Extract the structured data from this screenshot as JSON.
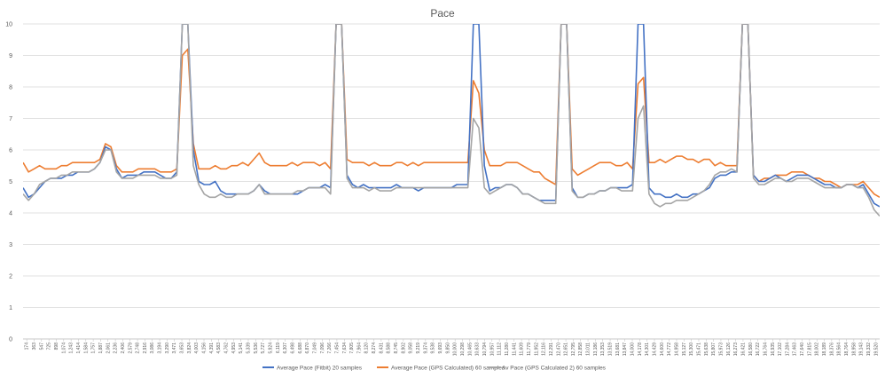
{
  "chart_data": {
    "type": "line",
    "title": "Pace",
    "xlabel": "",
    "ylabel": "",
    "ylim": [
      0,
      10
    ],
    "yticks": [
      "0",
      "1",
      "2",
      "3",
      "4",
      "5",
      "6",
      "7",
      "8",
      "9",
      "10"
    ],
    "grid": true,
    "legend_position": "bottom",
    "x_tick_labels": [
      "174",
      "363",
      "547",
      "725",
      "898",
      "1,074",
      "1,243",
      "1,414",
      "1,584",
      "1,757",
      "1,887",
      "2,061",
      "2,236",
      "2,406",
      "2,579",
      "2,748",
      "2,916",
      "3,086",
      "3,194",
      "3,290",
      "3,471",
      "3,653",
      "3,824",
      "4,003",
      "4,156",
      "4,391",
      "4,583",
      "4,762",
      "4,953",
      "5,141",
      "5,339",
      "5,536",
      "5,727",
      "5,924",
      "6,119",
      "6,307",
      "6,498",
      "6,688",
      "6,870",
      "7,049",
      "7,096",
      "7,266",
      "7,454",
      "7,634",
      "7,805",
      "7,964",
      "8,120",
      "8,274",
      "8,431",
      "8,588",
      "8,745",
      "8,902",
      "9,058",
      "9,219",
      "9,374",
      "9,538",
      "9,693",
      "9,850",
      "10,000",
      "10,298",
      "10,465",
      "10,633",
      "10,794",
      "10,957",
      "11,112",
      "11,280",
      "11,441",
      "11,609",
      "11,779",
      "11,952",
      "12,116",
      "12,291",
      "12,470",
      "12,651",
      "12,795",
      "12,858",
      "13,011",
      "13,186",
      "13,353",
      "13,519",
      "13,681",
      "13,847",
      "14,000",
      "14,178",
      "14,301",
      "14,429",
      "14,600",
      "14,772",
      "14,958",
      "15,127",
      "15,300",
      "15,471",
      "15,638",
      "15,807",
      "15,973",
      "16,126",
      "16,273",
      "16,421",
      "16,580",
      "16,722",
      "16,764",
      "16,935",
      "17,102",
      "17,284",
      "17,463",
      "17,640",
      "17,815",
      "18,002",
      "18,189",
      "18,376",
      "18,564",
      "18,764",
      "18,958",
      "19,143",
      "19,332",
      "19,520"
    ],
    "series": [
      {
        "name": "Average Pace (Fitbit) 20 samples",
        "color": "#4472C4",
        "values": [
          4.8,
          4.5,
          4.6,
          4.8,
          5.0,
          5.1,
          5.1,
          5.1,
          5.2,
          5.2,
          5.3,
          5.3,
          5.3,
          5.4,
          5.6,
          6.1,
          6.0,
          5.4,
          5.1,
          5.2,
          5.2,
          5.2,
          5.3,
          5.3,
          5.3,
          5.2,
          5.1,
          5.1,
          5.3,
          10.5,
          10.5,
          6.0,
          5.0,
          4.9,
          4.9,
          5.0,
          4.7,
          4.6,
          4.6,
          4.6,
          4.6,
          4.6,
          4.7,
          4.9,
          4.7,
          4.6,
          4.6,
          4.6,
          4.6,
          4.6,
          4.6,
          4.7,
          4.8,
          4.8,
          4.8,
          4.9,
          4.8,
          10.5,
          10.5,
          5.2,
          4.9,
          4.8,
          4.9,
          4.8,
          4.8,
          4.8,
          4.8,
          4.8,
          4.9,
          4.8,
          4.8,
          4.8,
          4.7,
          4.8,
          4.8,
          4.8,
          4.8,
          4.8,
          4.8,
          4.9,
          4.9,
          4.9,
          10.5,
          10.5,
          5.5,
          4.7,
          4.8,
          4.8,
          4.9,
          4.9,
          4.8,
          4.6,
          4.6,
          4.5,
          4.4,
          4.4,
          4.4,
          4.4,
          10.5,
          10.5,
          4.8,
          4.5,
          4.5,
          4.6,
          4.6,
          4.7,
          4.7,
          4.8,
          4.8,
          4.8,
          4.8,
          4.9,
          10.5,
          10.5,
          4.8,
          4.6,
          4.6,
          4.5,
          4.5,
          4.6,
          4.5,
          4.5,
          4.6,
          4.6,
          4.7,
          4.8,
          5.1,
          5.2,
          5.2,
          5.3,
          5.3,
          10.5,
          10.5,
          5.2,
          5.0,
          5.0,
          5.1,
          5.2,
          5.1,
          5.0,
          5.1,
          5.2,
          5.2,
          5.2,
          5.1,
          5.0,
          4.9,
          4.9,
          4.8,
          4.8,
          4.9,
          4.9,
          4.8,
          4.9,
          4.6,
          4.3,
          4.2
        ]
      },
      {
        "name": "Average Pace (GPS Calculated) 60 samples",
        "color": "#ED7D31",
        "values": [
          5.6,
          5.3,
          5.4,
          5.5,
          5.4,
          5.4,
          5.4,
          5.5,
          5.5,
          5.6,
          5.6,
          5.6,
          5.6,
          5.6,
          5.7,
          6.2,
          6.1,
          5.5,
          5.3,
          5.3,
          5.3,
          5.4,
          5.4,
          5.4,
          5.4,
          5.3,
          5.3,
          5.3,
          5.4,
          9.0,
          9.2,
          6.2,
          5.4,
          5.4,
          5.4,
          5.5,
          5.4,
          5.4,
          5.5,
          5.5,
          5.6,
          5.5,
          5.7,
          5.9,
          5.6,
          5.5,
          5.5,
          5.5,
          5.5,
          5.6,
          5.5,
          5.6,
          5.6,
          5.6,
          5.5,
          5.6,
          5.4,
          10.5,
          10.5,
          5.7,
          5.6,
          5.6,
          5.6,
          5.5,
          5.6,
          5.5,
          5.5,
          5.5,
          5.6,
          5.6,
          5.5,
          5.6,
          5.5,
          5.6,
          5.6,
          5.6,
          5.6,
          5.6,
          5.6,
          5.6,
          5.6,
          5.6,
          8.2,
          7.8,
          6.0,
          5.5,
          5.5,
          5.5,
          5.6,
          5.6,
          5.6,
          5.5,
          5.4,
          5.3,
          5.3,
          5.1,
          5.0,
          4.9,
          10.5,
          10.5,
          5.4,
          5.2,
          5.3,
          5.4,
          5.5,
          5.6,
          5.6,
          5.6,
          5.5,
          5.5,
          5.6,
          5.4,
          8.1,
          8.3,
          5.6,
          5.6,
          5.7,
          5.6,
          5.7,
          5.8,
          5.8,
          5.7,
          5.7,
          5.6,
          5.7,
          5.7,
          5.5,
          5.6,
          5.5,
          5.5,
          5.5,
          10.5,
          10.5,
          5.2,
          5.0,
          5.1,
          5.1,
          5.2,
          5.2,
          5.2,
          5.3,
          5.3,
          5.3,
          5.2,
          5.1,
          5.1,
          5.0,
          5.0,
          4.9,
          4.8,
          4.9,
          4.9,
          4.9,
          5.0,
          4.8,
          4.6,
          4.5
        ]
      },
      {
        "name": "Av Pace (GPS Calculated 2) 60 samples",
        "color": "#A5A5A5",
        "values": [
          4.6,
          4.4,
          4.6,
          4.9,
          5.0,
          5.1,
          5.1,
          5.2,
          5.2,
          5.3,
          5.3,
          5.3,
          5.3,
          5.4,
          5.6,
          6.0,
          6.0,
          5.3,
          5.1,
          5.1,
          5.1,
          5.2,
          5.2,
          5.2,
          5.2,
          5.1,
          5.1,
          5.1,
          5.2,
          10.5,
          10.5,
          5.5,
          4.9,
          4.6,
          4.5,
          4.5,
          4.6,
          4.5,
          4.5,
          4.6,
          4.6,
          4.6,
          4.7,
          4.9,
          4.6,
          4.6,
          4.6,
          4.6,
          4.6,
          4.6,
          4.7,
          4.7,
          4.8,
          4.8,
          4.8,
          4.8,
          4.6,
          10.5,
          10.5,
          5.1,
          4.8,
          4.8,
          4.8,
          4.7,
          4.8,
          4.7,
          4.7,
          4.7,
          4.8,
          4.8,
          4.8,
          4.8,
          4.8,
          4.8,
          4.8,
          4.8,
          4.8,
          4.8,
          4.8,
          4.8,
          4.8,
          4.8,
          7.0,
          6.7,
          4.8,
          4.6,
          4.7,
          4.8,
          4.9,
          4.9,
          4.8,
          4.6,
          4.6,
          4.5,
          4.4,
          4.3,
          4.3,
          4.3,
          10.5,
          10.5,
          4.7,
          4.5,
          4.5,
          4.6,
          4.6,
          4.7,
          4.7,
          4.8,
          4.8,
          4.7,
          4.7,
          4.7,
          7.0,
          7.4,
          4.6,
          4.3,
          4.2,
          4.3,
          4.3,
          4.4,
          4.4,
          4.4,
          4.5,
          4.6,
          4.7,
          4.9,
          5.2,
          5.3,
          5.3,
          5.4,
          5.3,
          10.5,
          10.5,
          5.1,
          4.9,
          4.9,
          5.0,
          5.1,
          5.1,
          5.0,
          5.0,
          5.1,
          5.1,
          5.1,
          5.0,
          4.9,
          4.8,
          4.8,
          4.8,
          4.8,
          4.9,
          4.9,
          4.8,
          4.8,
          4.5,
          4.1,
          3.9
        ]
      }
    ]
  }
}
